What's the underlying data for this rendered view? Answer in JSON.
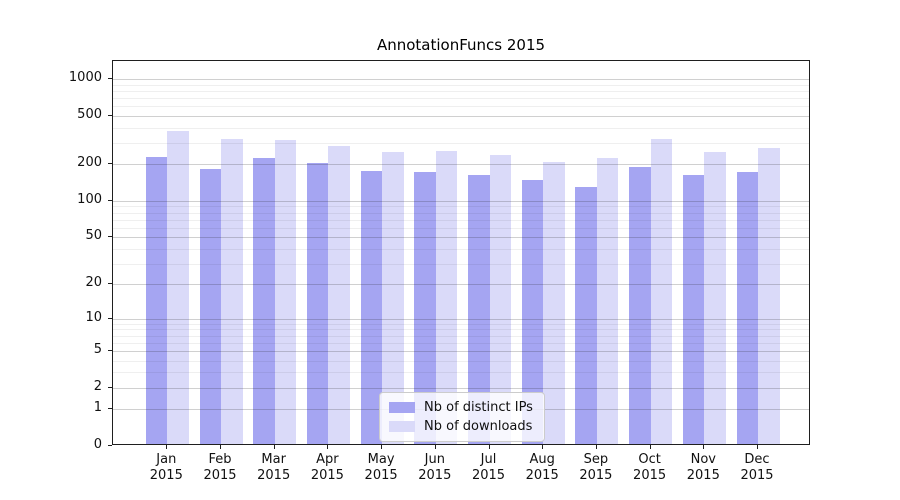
{
  "chart_data": {
    "type": "bar",
    "title": "AnnotationFuncs 2015",
    "categories": [
      "Jan 2015",
      "Feb 2015",
      "Mar 2015",
      "Apr 2015",
      "May 2015",
      "Jun 2015",
      "Jul 2015",
      "Aug 2015",
      "Sep 2015",
      "Oct 2015",
      "Nov 2015",
      "Dec 2015"
    ],
    "series": [
      {
        "name": "Nb of distinct IPs",
        "color": "#a5a5f2",
        "values": [
          220,
          177,
          218,
          198,
          171,
          168,
          158,
          144,
          126,
          183,
          156,
          166
        ]
      },
      {
        "name": "Nb of downloads",
        "color": "#dadaf9",
        "values": [
          364,
          311,
          304,
          272,
          242,
          250,
          231,
          200,
          217,
          309,
          242,
          262
        ]
      }
    ],
    "yticks": [
      0,
      1,
      2,
      5,
      10,
      20,
      50,
      100,
      200,
      500,
      1000
    ],
    "yscale": "log10(1+v)",
    "ylim": [
      0,
      1400
    ],
    "xlabel": "",
    "ylabel": "",
    "grid": "major and minor horizontal gridlines, drawn over bars",
    "legend_position": "lower center"
  }
}
